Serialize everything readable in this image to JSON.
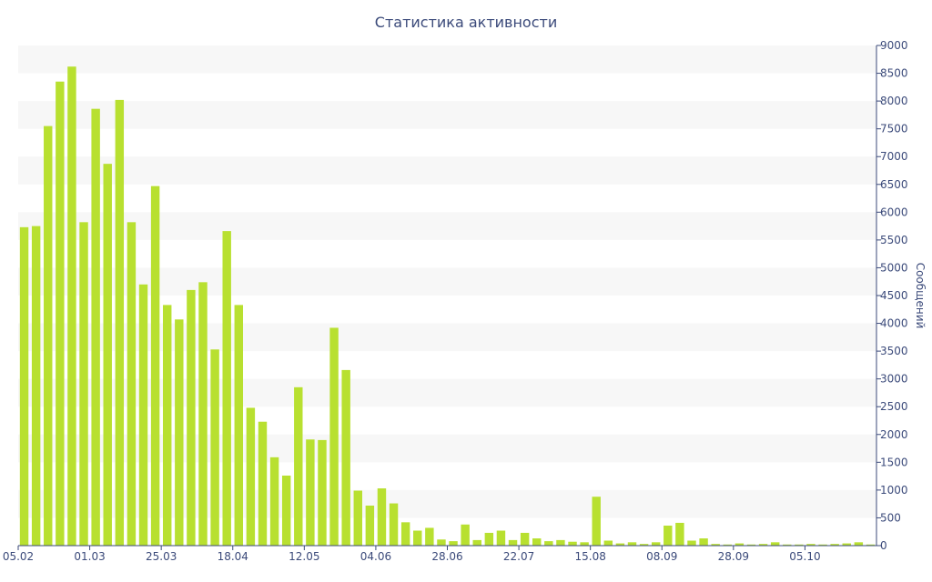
{
  "chart_data": {
    "type": "bar",
    "title": "Статистика активности",
    "xlabel": "",
    "ylabel": "Сообщений",
    "ylim": [
      0,
      9000
    ],
    "yticks": [
      0,
      500,
      1000,
      1500,
      2000,
      2500,
      3000,
      3500,
      4000,
      4500,
      5000,
      5500,
      6000,
      6500,
      7000,
      7500,
      8000,
      8500,
      9000
    ],
    "y_axis_position": "right",
    "grid": "horizontal alternating bands",
    "bar_color": "#b8e030",
    "band_color": "#f7f7f7",
    "text_color": "#3b4a7a",
    "x_tick_labels": [
      {
        "index": 0,
        "label": "05.02"
      },
      {
        "index": 6,
        "label": "01.03"
      },
      {
        "index": 12,
        "label": "25.03"
      },
      {
        "index": 18,
        "label": "18.04"
      },
      {
        "index": 24,
        "label": "12.05"
      },
      {
        "index": 30,
        "label": "04.06"
      },
      {
        "index": 36,
        "label": "28.06"
      },
      {
        "index": 42,
        "label": "22.07"
      },
      {
        "index": 48,
        "label": "15.08"
      },
      {
        "index": 54,
        "label": "08.09"
      },
      {
        "index": 60,
        "label": "28.09"
      },
      {
        "index": 66,
        "label": "05.10"
      }
    ],
    "values": [
      5730,
      5750,
      7550,
      8350,
      8620,
      5820,
      7860,
      6870,
      8020,
      5820,
      4700,
      6470,
      4330,
      4070,
      4600,
      4740,
      3530,
      5660,
      4330,
      2480,
      2230,
      1590,
      1260,
      2850,
      1910,
      1900,
      3920,
      3160,
      990,
      720,
      1030,
      760,
      420,
      270,
      320,
      110,
      80,
      380,
      100,
      230,
      270,
      100,
      230,
      130,
      80,
      100,
      70,
      60,
      880,
      90,
      40,
      60,
      30,
      60,
      360,
      410,
      90,
      130,
      30,
      20,
      40,
      20,
      30,
      60,
      20,
      20,
      30,
      20,
      30,
      40,
      60,
      20
    ]
  }
}
